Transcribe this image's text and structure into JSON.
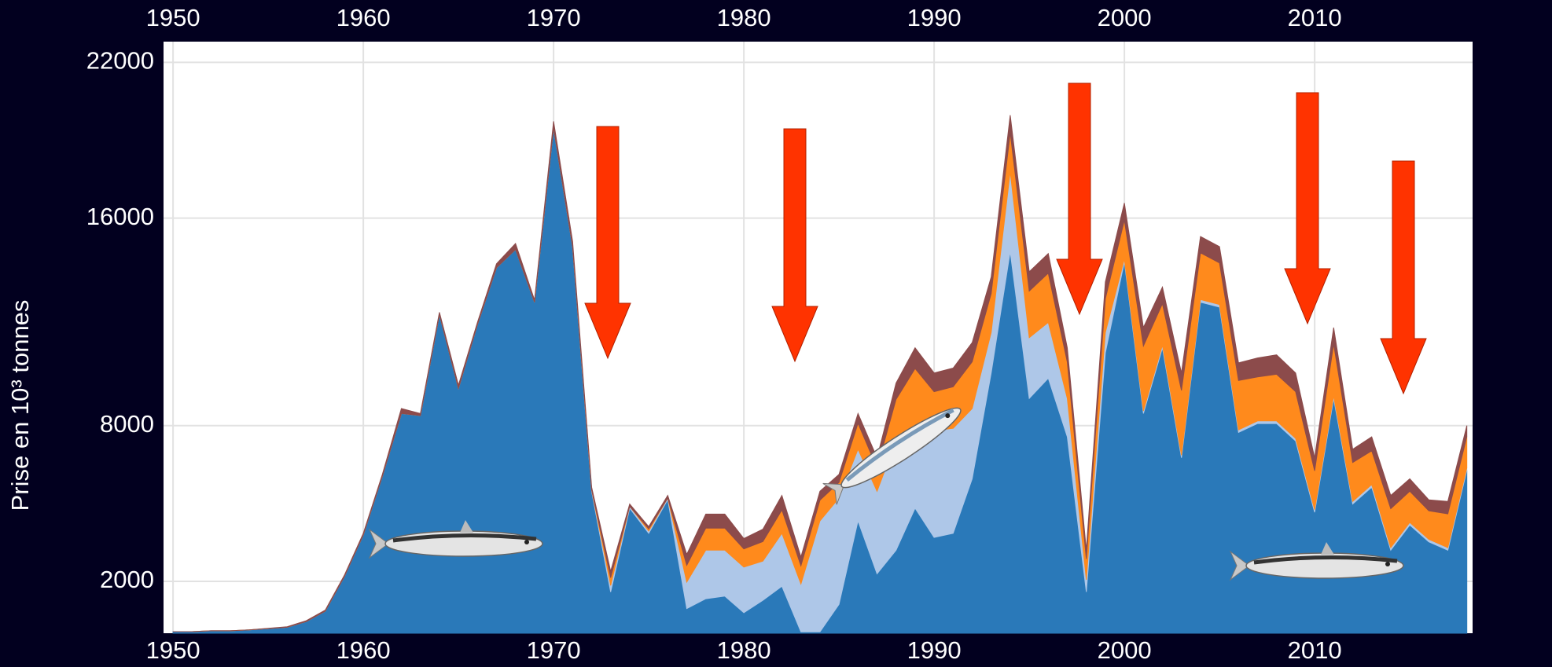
{
  "chart_data": {
    "type": "stacked_area",
    "y_label": "Prise en 10³ tonnes",
    "x": [
      1950,
      1951,
      1952,
      1953,
      1954,
      1955,
      1956,
      1957,
      1958,
      1959,
      1960,
      1961,
      1962,
      1963,
      1964,
      1965,
      1966,
      1967,
      1968,
      1969,
      1970,
      1971,
      1972,
      1973,
      1974,
      1975,
      1976,
      1977,
      1978,
      1979,
      1980,
      1981,
      1982,
      1983,
      1984,
      1985,
      1986,
      1987,
      1988,
      1989,
      1990,
      1991,
      1992,
      1993,
      1994,
      1995,
      1996,
      1997,
      1998,
      1999,
      2000,
      2001,
      2002,
      2003,
      2004,
      2005,
      2006,
      2007,
      2008,
      2009,
      2010,
      2011,
      2012,
      2013,
      2014,
      2015,
      2016,
      2017,
      2018
    ],
    "series": [
      {
        "color": "#2a79b9",
        "values": [
          60,
          60,
          95,
          95,
          130,
          180,
          230,
          450,
          850,
          2180,
          3790,
          6050,
          8470,
          8390,
          12290,
          9440,
          11900,
          14090,
          14790,
          12760,
          19480,
          14900,
          5470,
          1590,
          4820,
          3850,
          5150,
          950,
          1330,
          1430,
          790,
          1270,
          1810,
          50,
          50,
          1110,
          4330,
          2290,
          3200,
          4820,
          3690,
          3850,
          5950,
          10030,
          14710,
          9050,
          9830,
          7570,
          1590,
          10810,
          14320,
          8470,
          11000,
          6760,
          12760,
          12570,
          7740,
          8080,
          8080,
          7410,
          4660,
          9050,
          4980,
          5630,
          3200,
          4170,
          3520,
          3200,
          6280
        ]
      },
      {
        "color": "#aec7e8",
        "values": [
          0,
          0,
          0,
          0,
          0,
          0,
          0,
          0,
          0,
          0,
          0,
          0,
          0,
          0,
          0,
          0,
          0,
          0,
          0,
          0,
          0,
          0,
          60,
          250,
          70,
          90,
          60,
          1020,
          1870,
          1770,
          1760,
          1510,
          2040,
          1850,
          4280,
          4100,
          2760,
          3180,
          4210,
          3080,
          4120,
          4050,
          2710,
          1560,
          3080,
          2340,
          2150,
          1480,
          470,
          780,
          100,
          100,
          100,
          100,
          100,
          100,
          100,
          100,
          100,
          100,
          100,
          100,
          100,
          100,
          100,
          100,
          100,
          100,
          100
        ]
      },
      {
        "color": "#ff8a1c",
        "values": [
          0,
          0,
          0,
          0,
          0,
          0,
          0,
          0,
          0,
          0,
          0,
          0,
          0,
          0,
          0,
          0,
          0,
          0,
          0,
          0,
          0,
          0,
          0,
          300,
          0,
          80,
          0,
          650,
          850,
          850,
          700,
          750,
          900,
          700,
          800,
          600,
          1000,
          900,
          1600,
          2300,
          1500,
          1600,
          1800,
          1500,
          1500,
          1800,
          1900,
          1400,
          800,
          1300,
          1500,
          2500,
          1600,
          2500,
          1800,
          1600,
          1900,
          1700,
          1800,
          1800,
          1500,
          2000,
          1500,
          1300,
          1500,
          1200,
          1100,
          1300,
          1200
        ]
      },
      {
        "color": "#8c4b4b",
        "values": [
          0,
          0,
          0,
          0,
          0,
          10,
          20,
          30,
          40,
          50,
          60,
          70,
          190,
          80,
          80,
          120,
          80,
          150,
          230,
          80,
          250,
          200,
          100,
          250,
          90,
          90,
          100,
          420,
          540,
          540,
          400,
          480,
          560,
          340,
          340,
          310,
          380,
          390,
          630,
          800,
          720,
          720,
          740,
          640,
          680,
          740,
          750,
          550,
          340,
          650,
          660,
          710,
          640,
          670,
          630,
          630,
          680,
          730,
          750,
          720,
          500,
          630,
          510,
          540,
          510,
          480,
          420,
          480,
          420
        ]
      }
    ],
    "xlim": [
      1949.5,
      2018.3
    ],
    "xticks": [
      1950,
      1960,
      1970,
      1980,
      1990,
      2000,
      2010
    ],
    "ylim": [
      0,
      22800
    ],
    "yticks": [
      2000,
      8000,
      16000,
      22000
    ],
    "grid": true
  }
}
